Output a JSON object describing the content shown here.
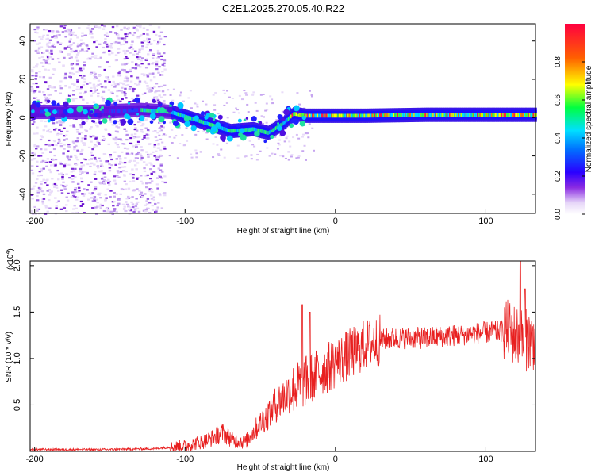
{
  "title": "C2E1.2025.270.05.40.R22",
  "chart_data": [
    {
      "type": "heatmap",
      "xlabel": "Height of straight line (km)",
      "ylabel": "Frequency (Hz)",
      "xlim": [
        -203,
        133
      ],
      "ylim": [
        -50,
        49
      ],
      "xticks": [
        -200,
        -100,
        0,
        100
      ],
      "yticks": [
        -40,
        -20,
        0,
        20,
        40
      ],
      "ridge": {
        "x": [
          -203,
          -160,
          -130,
          -110,
          -90,
          -70,
          -55,
          -45,
          -35,
          -28,
          -20,
          0,
          20,
          60,
          100,
          133
        ],
        "freq_hz": [
          3,
          3,
          4,
          3,
          -2,
          -7,
          -6,
          -8,
          -3,
          2,
          1,
          1,
          1,
          1.5,
          1.5,
          1.5
        ]
      },
      "noise_cloud_x_range": [
        -203,
        -120
      ],
      "colorbar": {
        "label": "Normalized spectral amplitude",
        "range": [
          0,
          1
        ],
        "ticks": [
          "0.0",
          "0.2",
          "0.4",
          "0.6",
          "0.8"
        ],
        "colors": [
          "#ffffff",
          "#d6b8f5",
          "#8a2be2",
          "#2a00ff",
          "#00c8ff",
          "#00ff40",
          "#ffff00",
          "#ff6000",
          "#ff0040"
        ]
      }
    },
    {
      "type": "line",
      "xlabel": "Height of straight line (km)",
      "ylabel": "SNR (10 * v/v)",
      "scale_label": "(x10",
      "scale_exp": "4",
      "scale_close": ")",
      "xlim": [
        -203,
        133
      ],
      "ylim": [
        0,
        2.05
      ],
      "xticks": [
        -200,
        -100,
        0,
        100
      ],
      "yticks": [
        "0.5",
        "1.0",
        "1.5",
        "2.0"
      ],
      "color": "#e82020",
      "envelope": {
        "x": [
          -203,
          -150,
          -120,
          -100,
          -85,
          -75,
          -68,
          -60,
          -50,
          -40,
          -30,
          -20,
          -10,
          0,
          10,
          20,
          30,
          40,
          60,
          80,
          100,
          115,
          120,
          125,
          133
        ],
        "y": [
          0.02,
          0.02,
          0.03,
          0.06,
          0.12,
          0.2,
          0.12,
          0.1,
          0.3,
          0.5,
          0.65,
          0.75,
          0.85,
          0.95,
          1.05,
          1.15,
          1.2,
          1.22,
          1.22,
          1.25,
          1.28,
          1.3,
          1.25,
          1.2,
          1.2
        ]
      },
      "spikes": [
        {
          "x": -22,
          "y": 1.58
        },
        {
          "x": -17,
          "y": 1.5
        },
        {
          "x": 123,
          "y": 2.05
        },
        {
          "x": 126,
          "y": 1.75
        }
      ]
    }
  ]
}
